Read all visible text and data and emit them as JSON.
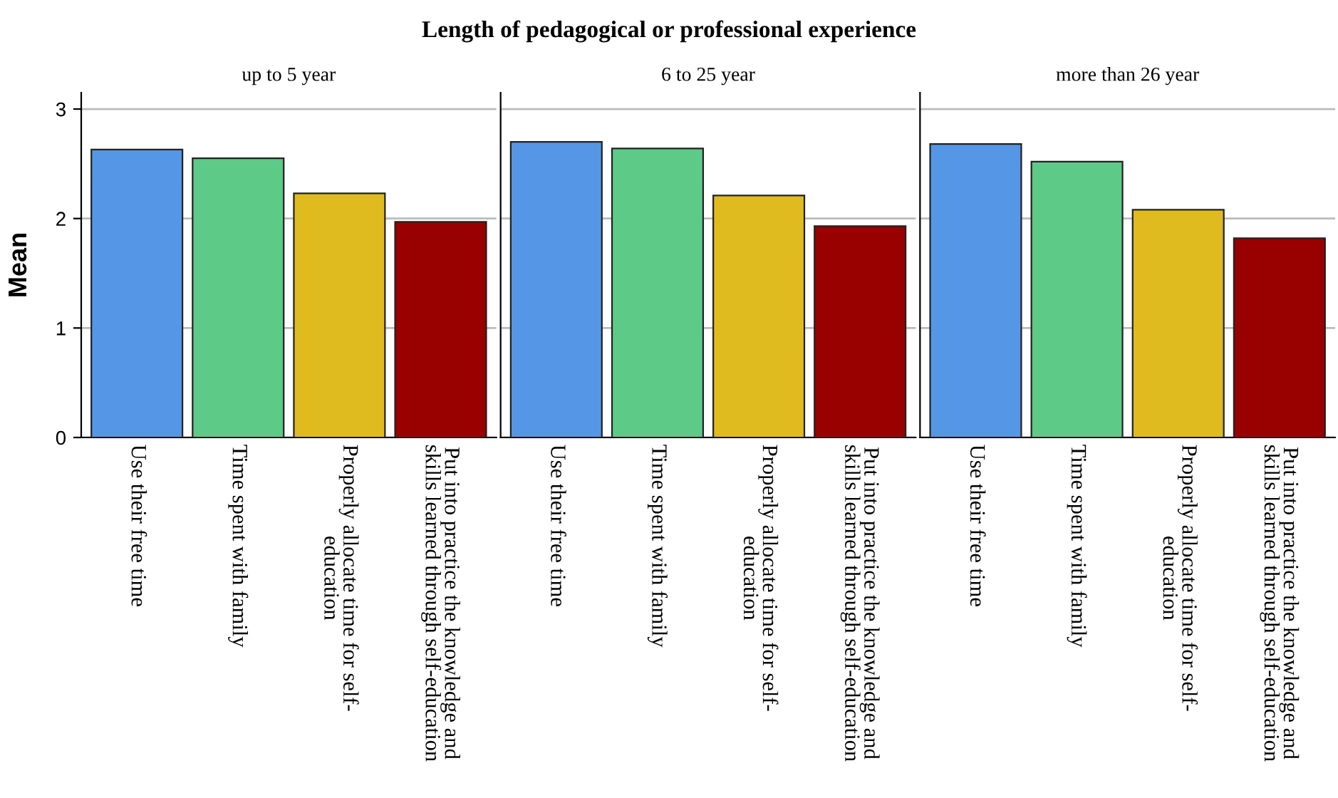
{
  "chart_data": [
    {
      "type": "bar",
      "title": "up to 5 year",
      "ylabel": "Mean",
      "annotations": [
        "Length of pedagogical or professional experience"
      ],
      "categories": [
        "Use their free time",
        "Time spent with family",
        "Properly allocate time for self-\neducation",
        "Put into practice the knowledge and\nskills learned through self-education"
      ],
      "values": [
        2.63,
        2.55,
        2.23,
        1.97
      ],
      "colors": [
        "#5596e6",
        "#5dca88",
        "#e0bb1f",
        "#990000"
      ],
      "ylim": [
        0,
        3.15
      ],
      "yticks": [
        0,
        1,
        2,
        3
      ],
      "grid": "y"
    },
    {
      "type": "bar",
      "title": "6 to 25 year",
      "categories": [
        "Use their free time",
        "Time spent with family",
        "Properly allocate time for self-\neducation",
        "Put into practice the knowledge and\nskills learned through self-education"
      ],
      "values": [
        2.7,
        2.64,
        2.21,
        1.93
      ],
      "colors": [
        "#5596e6",
        "#5dca88",
        "#e0bb1f",
        "#990000"
      ],
      "ylim": [
        0,
        3.15
      ],
      "yticks": [
        0,
        1,
        2,
        3
      ],
      "grid": "y",
      "tick_labels": "x"
    },
    {
      "type": "bar",
      "title": "more than 26 year",
      "categories": [
        "Use their free time",
        "Time spent with family",
        "Properly allocate time for self-\neducation",
        "Put into practice the knowledge and\nskills learned through self-education"
      ],
      "values": [
        2.68,
        2.52,
        2.08,
        1.82
      ],
      "colors": [
        "#5596e6",
        "#5dca88",
        "#e0bb1f",
        "#990000"
      ],
      "ylim": [
        0,
        3.15
      ],
      "yticks": [
        0,
        1,
        2,
        3
      ],
      "grid": "y",
      "tick_labels": "x"
    }
  ]
}
